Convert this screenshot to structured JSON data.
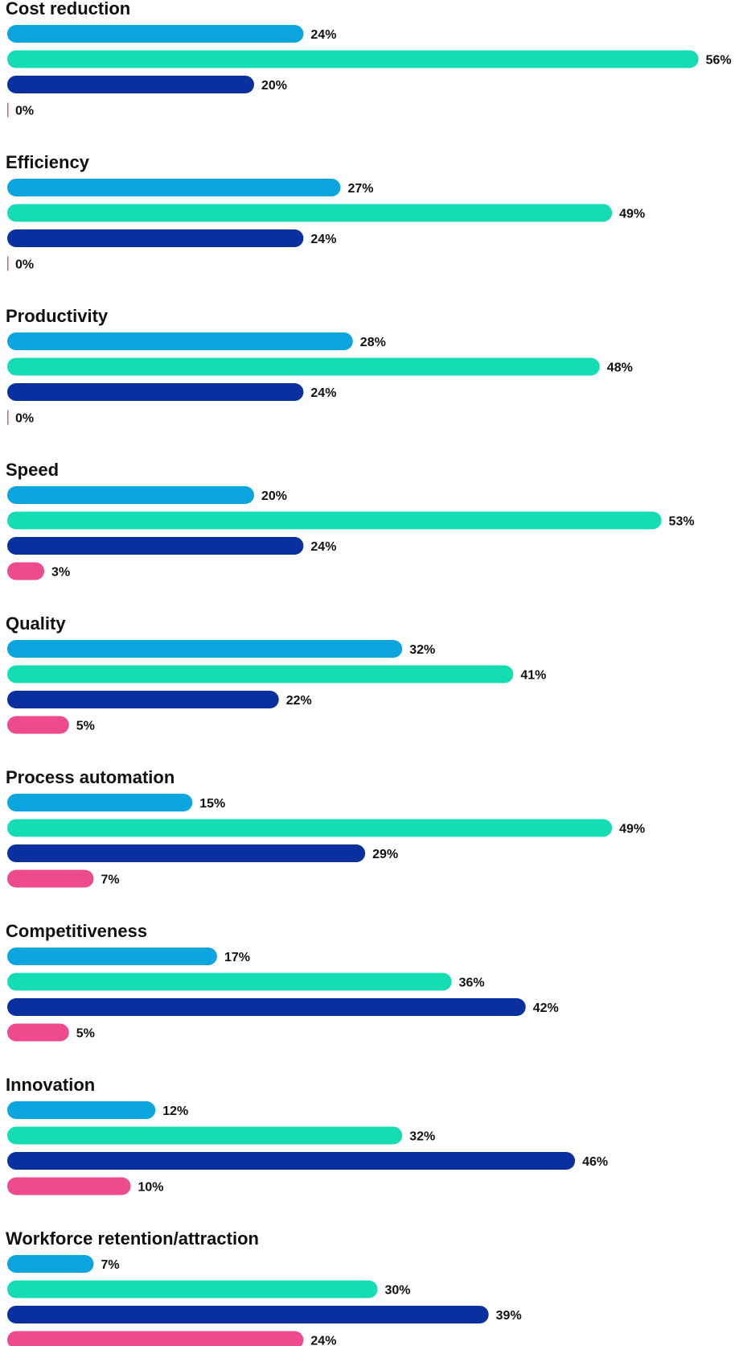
{
  "chart_data": {
    "type": "bar",
    "orientation": "horizontal",
    "categories": [
      "Cost reduction",
      "Efficiency",
      "Productivity",
      "Speed",
      "Quality",
      "Process automation",
      "Competitiveness",
      "Innovation",
      "Workforce retention/attraction"
    ],
    "series": [
      {
        "color": "#0BA6E0",
        "values": [
          24,
          27,
          28,
          20,
          32,
          15,
          17,
          12,
          7
        ]
      },
      {
        "color": "#14DDB4",
        "values": [
          56,
          49,
          48,
          53,
          41,
          49,
          36,
          32,
          30
        ]
      },
      {
        "color": "#0A2F9E",
        "values": [
          20,
          24,
          24,
          24,
          22,
          29,
          42,
          46,
          39
        ]
      },
      {
        "color": "#EE4B8F",
        "values": [
          0,
          0,
          0,
          3,
          5,
          7,
          5,
          10,
          24
        ]
      }
    ],
    "value_suffix": "%",
    "xlim": [
      0,
      56
    ],
    "grid": false,
    "legend": "none"
  }
}
